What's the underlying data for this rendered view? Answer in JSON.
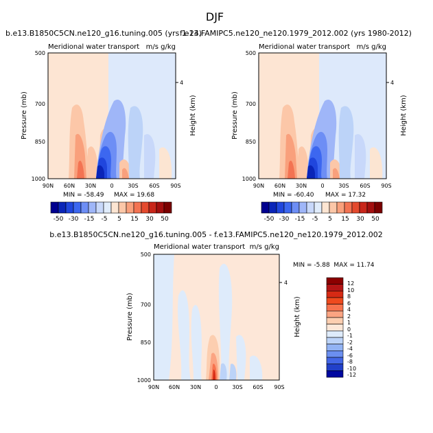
{
  "figure_title": "DJF",
  "chart_data": [
    {
      "type": "contour",
      "case_title": "b.e13.B1850C5CN.ne120_g16.tuning.005 (yrs 1-24)",
      "title": "Meridional water transport",
      "units": "m/s g/kg",
      "ylabel": "Pressure (mb)",
      "y2label": "Height (km)",
      "y2ticks": [
        "4"
      ],
      "yticks": [
        "500",
        "700",
        "850",
        "1000"
      ],
      "xticks": [
        "90N",
        "60N",
        "30N",
        "0",
        "30S",
        "60S",
        "90S"
      ],
      "min_label": "MIN = -58.49",
      "max_label": "MAX = 19.68",
      "colorbar_labels": [
        "-50",
        "-30",
        "-15",
        "-5",
        "5",
        "15",
        "30",
        "50"
      ]
    },
    {
      "type": "contour",
      "case_title": "f.e13.FAMIPC5.ne120_ne120.1979_2012.002 (yrs 1980-2012)",
      "title": "Meridional water transport",
      "units": "m/s g/kg",
      "ylabel": "Pressure (mb)",
      "y2label": "Height (km)",
      "y2ticks": [
        "4"
      ],
      "yticks": [
        "500",
        "700",
        "850",
        "1000"
      ],
      "xticks": [
        "90N",
        "60N",
        "30N",
        "0",
        "30S",
        "60S",
        "90S"
      ],
      "min_label": "MIN = -60.40",
      "max_label": "MAX = 17.32",
      "colorbar_labels": [
        "-50",
        "-30",
        "-15",
        "-5",
        "5",
        "15",
        "30",
        "50"
      ]
    },
    {
      "type": "contour",
      "case_title": "b.e13.B1850C5CN.ne120_g16.tuning.005 - f.e13.FAMIPC5.ne120_ne120.1979_2012.002",
      "title": "Meridional water transport",
      "units": "m/s g/kg",
      "ylabel": "Pressure (mb)",
      "y2label": "Height (km)",
      "y2ticks": [
        "4"
      ],
      "yticks": [
        "500",
        "700",
        "850",
        "1000"
      ],
      "xticks": [
        "90N",
        "60N",
        "30N",
        "0",
        "30S",
        "60S",
        "90S"
      ],
      "minmax_label": "MIN = -5.88  MAX = 11.74",
      "colorbar_labels": [
        "12",
        "10",
        "8",
        "6",
        "4",
        "2",
        "1",
        "0",
        "-1",
        "-2",
        "-4",
        "-6",
        "-8",
        "-10",
        "-12"
      ]
    }
  ],
  "colors": {
    "bar_main": [
      "#00008f",
      "#0a25b8",
      "#2046dd",
      "#3c67f0",
      "#6d8ef5",
      "#9fb6f8",
      "#c8d8fa",
      "#e0ecfb",
      "#fce5d2",
      "#fcc7a8",
      "#f9a07c",
      "#f37352",
      "#e44a2e",
      "#c8261a",
      "#a30f0f",
      "#7a0000"
    ],
    "bar_diff": [
      "#8b0000",
      "#b31515",
      "#d62a14",
      "#ee4a1e",
      "#f7734e",
      "#fba482",
      "#fcceb0",
      "#fde7d8",
      "#deebfb",
      "#bcd3f8",
      "#92b3f4",
      "#6b8ff0",
      "#4366e6",
      "#2140c9",
      "#0008a0"
    ]
  }
}
